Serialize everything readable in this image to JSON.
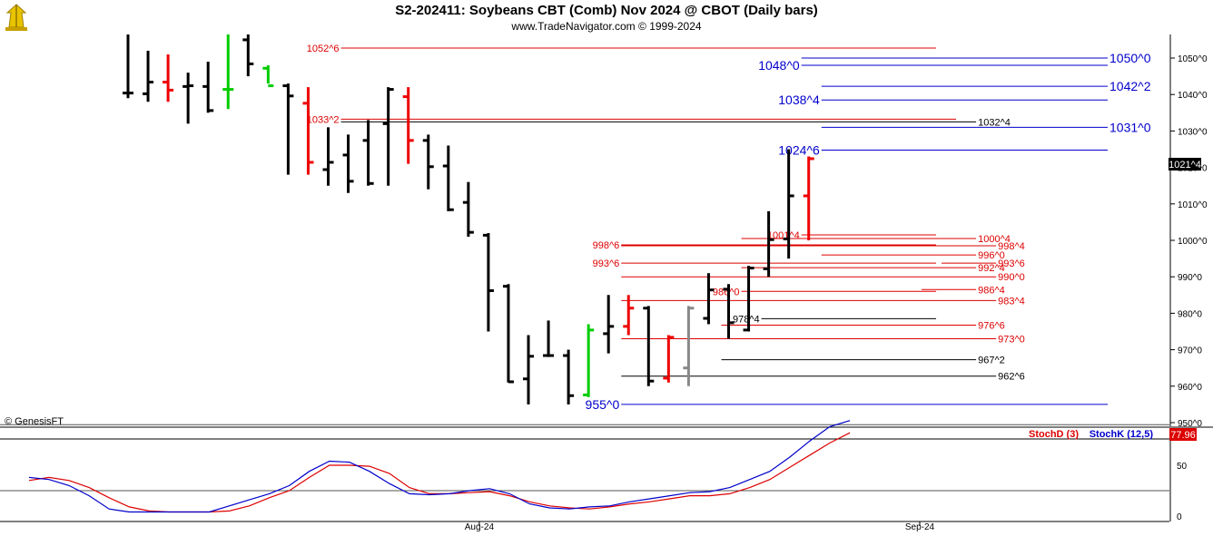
{
  "header": {
    "title": "S2-202411:  Soybeans CBT (Comb) Nov 2024 @ CBOT  (Daily bars)",
    "subtitle": "www.TradeNavigator.com © 1999-2024",
    "logo_icon": "trade-navigator-logo-icon"
  },
  "copyright": "© GenesisFT",
  "price_readout": "1021^4",
  "stoch_readout": "77.96",
  "colors": {
    "bar_black": "#000000",
    "bar_red": "#ee0000",
    "bar_green": "#00cc00",
    "bar_gray": "#888888",
    "level_red": "#dd0000",
    "level_blue": "#0000cc",
    "level_black": "#000000",
    "stoch_d": "#dd0000",
    "stoch_k": "#0000cc"
  },
  "chart_data": [
    {
      "type": "ohlc",
      "ylim": [
        947,
        1057
      ],
      "yticks": [
        950,
        960,
        970,
        980,
        990,
        1000,
        1010,
        1020,
        1030,
        1040,
        1050
      ],
      "ytick_labels": [
        "950^0",
        "960^0",
        "970^0",
        "980^0",
        "990^0",
        "1000^0",
        "1010^0",
        "1020^0",
        "1030^0",
        "1040^0",
        "1050^0"
      ],
      "bars": [
        {
          "h": 1057,
          "l": 1039,
          "o": 1040.4,
          "c": 1040.4,
          "col": "black"
        },
        {
          "h": 1052,
          "l": 1038,
          "o": 1040.2,
          "c": 1043.4,
          "col": "black"
        },
        {
          "h": 1051,
          "l": 1038,
          "o": 1043.4,
          "c": 1041.2,
          "col": "red"
        },
        {
          "h": 1046,
          "l": 1032,
          "o": 1042.2,
          "c": 1042.4,
          "col": "black"
        },
        {
          "h": 1049,
          "l": 1035,
          "o": 1042.2,
          "c": 1035.6,
          "col": "black"
        },
        {
          "h": 1057,
          "l": 1036,
          "o": 1041.4,
          "c": 1041.4,
          "col": "green"
        },
        {
          "h": 1057,
          "l": 1045,
          "o": 1055,
          "c": 1048.4,
          "col": "black"
        },
        {
          "h": 1048,
          "l": 1043,
          "o": 1047.2,
          "c": 1042.4,
          "col": "green"
        },
        {
          "h": 1043,
          "l": 1018,
          "o": 1042.4,
          "c": 1039.6,
          "col": "black"
        },
        {
          "h": 1042,
          "l": 1018,
          "o": 1037.6,
          "c": 1021.4,
          "col": "red"
        },
        {
          "h": 1031,
          "l": 1015,
          "o": 1019.4,
          "c": 1021.4,
          "col": "black"
        },
        {
          "h": 1029,
          "l": 1013,
          "o": 1023.4,
          "c": 1016.2,
          "col": "black"
        },
        {
          "h": 1033,
          "l": 1015,
          "o": 1027.4,
          "c": 1015.6,
          "col": "black"
        },
        {
          "h": 1042,
          "l": 1015,
          "o": 1032,
          "c": 1041.4,
          "col": "black"
        },
        {
          "h": 1042,
          "l": 1021,
          "o": 1039.4,
          "c": 1027.4,
          "col": "red"
        },
        {
          "h": 1029,
          "l": 1014,
          "o": 1027.4,
          "c": 1020.2,
          "col": "black"
        },
        {
          "h": 1026,
          "l": 1008,
          "o": 1020.4,
          "c": 1008.4,
          "col": "black"
        },
        {
          "h": 1016,
          "l": 1001,
          "o": 1010.4,
          "c": 1002.2,
          "col": "black"
        },
        {
          "h": 1002,
          "l": 975,
          "o": 1001.4,
          "c": 986.2,
          "col": "black"
        },
        {
          "h": 988,
          "l": 961,
          "o": 987.4,
          "c": 961.2,
          "col": "black"
        },
        {
          "h": 974,
          "l": 955,
          "o": 962,
          "c": 968.2,
          "col": "black"
        },
        {
          "h": 978,
          "l": 968,
          "o": 968.4,
          "c": 968.4,
          "col": "black"
        },
        {
          "h": 970,
          "l": 955,
          "o": 968.4,
          "c": 957.4,
          "col": "black"
        },
        {
          "h": 977,
          "l": 957,
          "o": 957.6,
          "c": 975.4,
          "col": "green"
        },
        {
          "h": 985,
          "l": 969,
          "o": 974.4,
          "c": 976.4,
          "col": "black"
        },
        {
          "h": 985,
          "l": 974,
          "o": 976.4,
          "c": 981.4,
          "col": "red"
        },
        {
          "h": 982,
          "l": 960,
          "o": 981.4,
          "c": 961.4,
          "col": "black"
        },
        {
          "h": 974,
          "l": 961,
          "o": 962.2,
          "c": 973.4,
          "col": "red"
        },
        {
          "h": 982,
          "l": 960,
          "o": 965,
          "c": 981.4,
          "col": "gray"
        },
        {
          "h": 991,
          "l": 977,
          "o": 978.6,
          "c": 986.4,
          "col": "black"
        },
        {
          "h": 988,
          "l": 973,
          "o": 986.6,
          "c": 977.4,
          "col": "black"
        },
        {
          "h": 993,
          "l": 975,
          "o": 975.4,
          "c": 992.4,
          "col": "black"
        },
        {
          "h": 1008,
          "l": 990,
          "o": 992.2,
          "c": 1000.2,
          "col": "black"
        },
        {
          "h": 1025,
          "l": 995,
          "o": 1000.4,
          "c": 1012.2,
          "col": "black"
        },
        {
          "h": 1023,
          "l": 1000,
          "o": 1012.2,
          "c": 1022.4,
          "col": "red"
        }
      ],
      "levels": [
        {
          "price": 1052.75,
          "label": "1052^6",
          "side": "left",
          "color": "red",
          "from": 11,
          "to": 40
        },
        {
          "price": 1050,
          "label": "1050^0",
          "side": "right",
          "color": "blue",
          "from": 34,
          "to": 51
        },
        {
          "price": 1048,
          "label": "1048^0",
          "side": "left",
          "color": "blue",
          "from": 34,
          "to": 51
        },
        {
          "price": 1042.25,
          "label": "1042^2",
          "side": "right",
          "color": "blue",
          "from": 35,
          "to": 51
        },
        {
          "price": 1038.5,
          "label": "1038^4",
          "side": "left",
          "color": "blue",
          "from": 35,
          "to": 51
        },
        {
          "price": 1033.25,
          "label": "1033^2",
          "side": "left",
          "color": "red",
          "from": 11,
          "to": 41
        },
        {
          "price": 1032.5,
          "label": "1032^4",
          "side": "right",
          "color": "black",
          "from": 11,
          "to": 42
        },
        {
          "price": 1031,
          "label": "1031^0",
          "side": "right",
          "color": "blue",
          "from": 35,
          "to": 51
        },
        {
          "price": 1024.75,
          "label": "1024^6",
          "side": "left",
          "color": "blue",
          "from": 35,
          "to": 51
        },
        {
          "price": 1001.5,
          "label": "1001^4",
          "side": "left",
          "color": "red",
          "from": 34,
          "to": 40
        },
        {
          "price": 1000.5,
          "label": "1000^4",
          "side": "right",
          "color": "red",
          "from": 31,
          "to": 42
        },
        {
          "price": 998.75,
          "label": "998^6",
          "side": "left",
          "color": "red",
          "from": 25,
          "to": 40
        },
        {
          "price": 998.5,
          "label": "998^4",
          "side": "right",
          "color": "red",
          "from": 25,
          "to": 43
        },
        {
          "price": 996,
          "label": "996^0",
          "side": "right",
          "color": "red",
          "from": 35,
          "to": 42
        },
        {
          "price": 993.75,
          "label": "993^6",
          "side": "left",
          "color": "red",
          "from": 25,
          "to": 40
        },
        {
          "price": 993.75,
          "label": "993^6",
          "side": "right",
          "color": "red",
          "from": 41,
          "to": 43
        },
        {
          "price": 992.5,
          "label": "992^4",
          "side": "right",
          "color": "red",
          "from": 31,
          "to": 42
        },
        {
          "price": 990,
          "label": "990^0",
          "side": "right",
          "color": "red",
          "from": 25,
          "to": 43
        },
        {
          "price": 986,
          "label": "986^0",
          "side": "left",
          "color": "red",
          "from": 31,
          "to": 40
        },
        {
          "price": 986.5,
          "label": "986^4",
          "side": "right",
          "color": "red",
          "from": 40,
          "to": 42
        },
        {
          "price": 983.5,
          "label": "983^4",
          "side": "right",
          "color": "red",
          "from": 25,
          "to": 43
        },
        {
          "price": 978.5,
          "label": "978^4",
          "side": "left",
          "color": "black",
          "from": 32,
          "to": 40
        },
        {
          "price": 976.75,
          "label": "976^6",
          "side": "right",
          "color": "red",
          "from": 30,
          "to": 42
        },
        {
          "price": 973,
          "label": "973^0",
          "side": "right",
          "color": "red",
          "from": 25,
          "to": 43
        },
        {
          "price": 967.25,
          "label": "967^2",
          "side": "right",
          "color": "black",
          "from": 30,
          "to": 42
        },
        {
          "price": 962.75,
          "label": "962^6",
          "side": "right",
          "color": "black",
          "from": 25,
          "to": 43
        },
        {
          "price": 955,
          "label": "955^0",
          "side": "left",
          "color": "blue",
          "from": 25,
          "to": 51
        }
      ]
    },
    {
      "type": "line",
      "ylim": [
        0,
        100
      ],
      "yticks": [
        0,
        50
      ],
      "ytick_labels": [
        "0",
        "50"
      ],
      "legend": [
        "StochD (3)",
        "StochK (12,5)"
      ],
      "x_labels": [
        {
          "label": "Aug-24",
          "index": 18
        },
        {
          "label": "Sep-24",
          "index": 40
        }
      ],
      "series": [
        {
          "name": "StochD (3)",
          "color": "red",
          "values": [
            35,
            38,
            35,
            28,
            18,
            9,
            5,
            4,
            4,
            4,
            5,
            10,
            18,
            25,
            38,
            50,
            50,
            49,
            42,
            28,
            22,
            22,
            23,
            24,
            20,
            14,
            10,
            8,
            7,
            9,
            12,
            14,
            17,
            20,
            20,
            22,
            28,
            36,
            48,
            60,
            72,
            82
          ]
        },
        {
          "name": "StochK (12,5)",
          "color": "blue",
          "values": [
            38,
            36,
            30,
            20,
            7,
            4,
            4,
            4,
            4,
            4,
            10,
            16,
            22,
            30,
            44,
            54,
            53,
            44,
            32,
            22,
            21,
            22,
            25,
            27,
            22,
            12,
            8,
            7,
            9,
            10,
            14,
            17,
            20,
            23,
            24,
            28,
            36,
            44,
            58,
            74,
            88,
            94
          ]
        }
      ]
    }
  ]
}
